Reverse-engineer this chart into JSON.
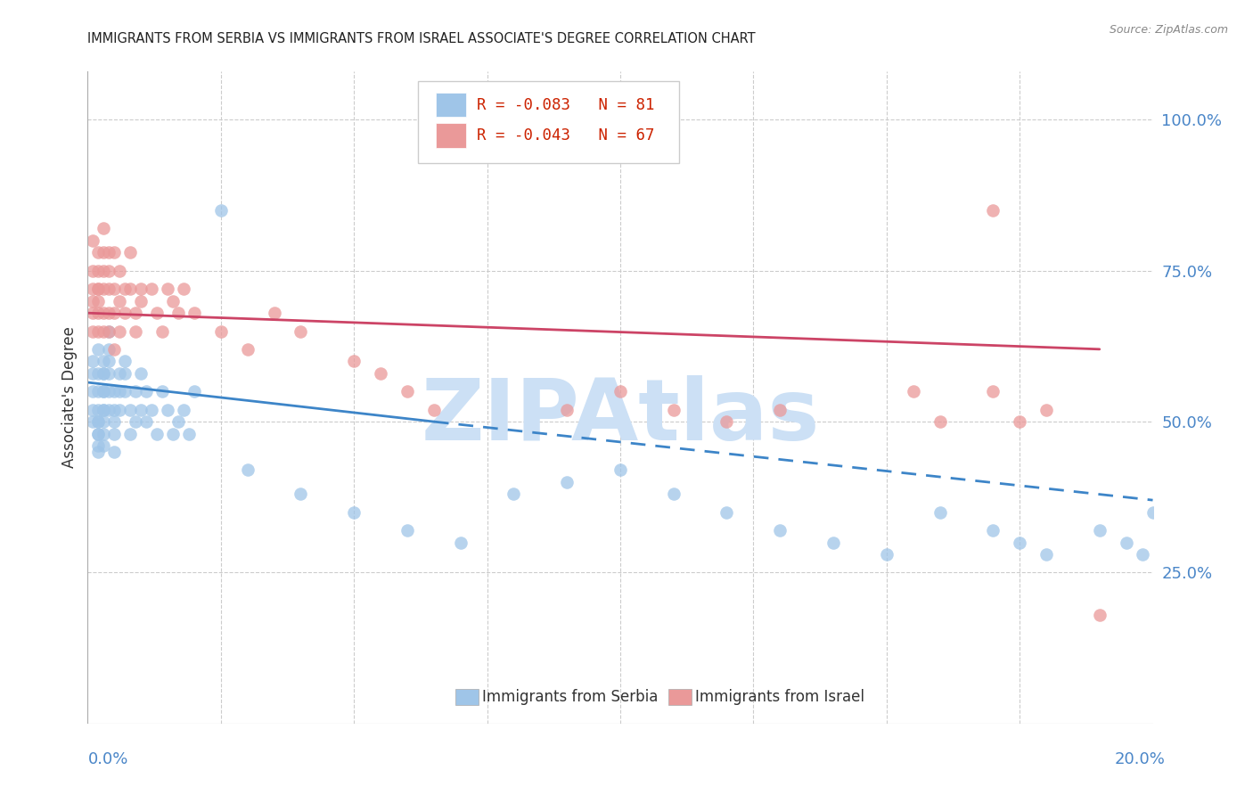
{
  "title": "IMMIGRANTS FROM SERBIA VS IMMIGRANTS FROM ISRAEL ASSOCIATE'S DEGREE CORRELATION CHART",
  "source": "Source: ZipAtlas.com",
  "ylabel": "Associate's Degree",
  "ylim": [
    0.0,
    1.08
  ],
  "xlim": [
    0.0,
    0.2
  ],
  "serbia_color": "#9fc5e8",
  "israel_color": "#ea9999",
  "serbia_line_color": "#3d85c8",
  "israel_line_color": "#cc4466",
  "serbia_R": -0.083,
  "serbia_N": 81,
  "israel_R": -0.043,
  "israel_N": 67,
  "watermark": "ZIPAtlas",
  "watermark_color": "#cce0f5",
  "axis_color": "#4a86c8",
  "grid_color": "#cccccc",
  "background_color": "#ffffff",
  "serbia_x": [
    0.001,
    0.001,
    0.001,
    0.001,
    0.001,
    0.002,
    0.002,
    0.002,
    0.002,
    0.002,
    0.002,
    0.002,
    0.002,
    0.002,
    0.002,
    0.003,
    0.003,
    0.003,
    0.003,
    0.003,
    0.003,
    0.003,
    0.003,
    0.003,
    0.003,
    0.004,
    0.004,
    0.004,
    0.004,
    0.004,
    0.004,
    0.005,
    0.005,
    0.005,
    0.005,
    0.005,
    0.006,
    0.006,
    0.006,
    0.007,
    0.007,
    0.007,
    0.008,
    0.008,
    0.009,
    0.009,
    0.01,
    0.01,
    0.011,
    0.011,
    0.012,
    0.013,
    0.014,
    0.015,
    0.016,
    0.017,
    0.018,
    0.019,
    0.02,
    0.025,
    0.03,
    0.04,
    0.05,
    0.06,
    0.07,
    0.08,
    0.09,
    0.1,
    0.11,
    0.12,
    0.13,
    0.14,
    0.15,
    0.16,
    0.17,
    0.175,
    0.18,
    0.19,
    0.195,
    0.198,
    0.2
  ],
  "serbia_y": [
    0.58,
    0.55,
    0.6,
    0.52,
    0.5,
    0.62,
    0.58,
    0.55,
    0.52,
    0.5,
    0.48,
    0.45,
    0.48,
    0.46,
    0.5,
    0.6,
    0.58,
    0.55,
    0.52,
    0.5,
    0.48,
    0.46,
    0.52,
    0.55,
    0.58,
    0.62,
    0.58,
    0.55,
    0.52,
    0.6,
    0.65,
    0.55,
    0.52,
    0.48,
    0.45,
    0.5,
    0.58,
    0.55,
    0.52,
    0.6,
    0.58,
    0.55,
    0.52,
    0.48,
    0.55,
    0.5,
    0.52,
    0.58,
    0.55,
    0.5,
    0.52,
    0.48,
    0.55,
    0.52,
    0.48,
    0.5,
    0.52,
    0.48,
    0.55,
    0.85,
    0.42,
    0.38,
    0.35,
    0.32,
    0.3,
    0.38,
    0.4,
    0.42,
    0.38,
    0.35,
    0.32,
    0.3,
    0.28,
    0.35,
    0.32,
    0.3,
    0.28,
    0.32,
    0.3,
    0.28,
    0.35
  ],
  "israel_x": [
    0.001,
    0.001,
    0.001,
    0.001,
    0.001,
    0.001,
    0.002,
    0.002,
    0.002,
    0.002,
    0.002,
    0.002,
    0.002,
    0.003,
    0.003,
    0.003,
    0.003,
    0.003,
    0.003,
    0.004,
    0.004,
    0.004,
    0.004,
    0.004,
    0.005,
    0.005,
    0.005,
    0.005,
    0.006,
    0.006,
    0.006,
    0.007,
    0.007,
    0.008,
    0.008,
    0.009,
    0.009,
    0.01,
    0.01,
    0.012,
    0.013,
    0.014,
    0.015,
    0.016,
    0.017,
    0.018,
    0.02,
    0.025,
    0.03,
    0.035,
    0.04,
    0.05,
    0.055,
    0.06,
    0.065,
    0.09,
    0.1,
    0.11,
    0.12,
    0.13,
    0.155,
    0.16,
    0.17,
    0.18,
    0.17,
    0.175,
    0.19
  ],
  "israel_y": [
    0.7,
    0.68,
    0.65,
    0.72,
    0.75,
    0.8,
    0.72,
    0.7,
    0.68,
    0.75,
    0.78,
    0.65,
    0.72,
    0.82,
    0.78,
    0.75,
    0.72,
    0.68,
    0.65,
    0.78,
    0.75,
    0.72,
    0.68,
    0.65,
    0.78,
    0.72,
    0.68,
    0.62,
    0.75,
    0.7,
    0.65,
    0.72,
    0.68,
    0.78,
    0.72,
    0.68,
    0.65,
    0.72,
    0.7,
    0.72,
    0.68,
    0.65,
    0.72,
    0.7,
    0.68,
    0.72,
    0.68,
    0.65,
    0.62,
    0.68,
    0.65,
    0.6,
    0.58,
    0.55,
    0.52,
    0.52,
    0.55,
    0.52,
    0.5,
    0.52,
    0.55,
    0.5,
    0.85,
    0.52,
    0.55,
    0.5,
    0.18
  ],
  "serbia_trend_x0": 0.0,
  "serbia_trend_y0": 0.565,
  "serbia_trend_x1": 0.065,
  "serbia_trend_y1": 0.5,
  "serbia_trend_xd0": 0.065,
  "serbia_trend_yd0": 0.5,
  "serbia_trend_xd1": 0.2,
  "serbia_trend_yd1": 0.37,
  "israel_trend_x0": 0.0,
  "israel_trend_y0": 0.68,
  "israel_trend_x1": 0.19,
  "israel_trend_y1": 0.62
}
